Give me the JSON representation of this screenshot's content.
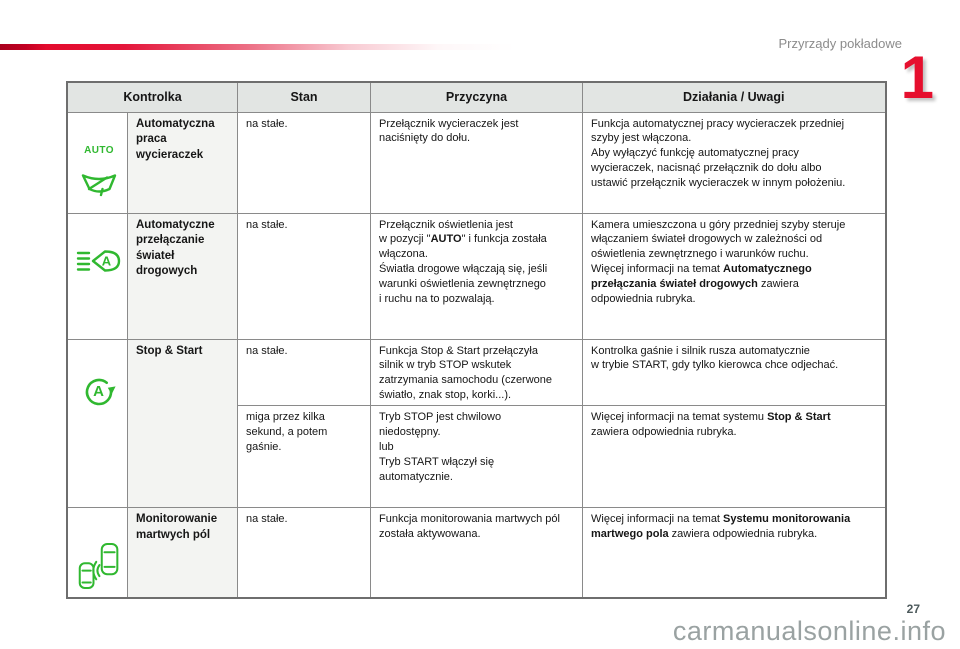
{
  "page": {
    "section_title": "Przyrządy pokładowe",
    "chapter_number": "1",
    "page_number": "27",
    "watermark": "carmanualsonline.info"
  },
  "colors": {
    "accent_red": "#e30b2d",
    "indicator_green": "#30b830",
    "header_bg": "#e2e5e3"
  },
  "table": {
    "headers": [
      "Kontrolka",
      "Stan",
      "Przyczyna",
      "Działania / Uwagi"
    ],
    "rows": [
      {
        "icon": "auto-wipers-icon",
        "icon_label": "AUTO",
        "label": "Automatyczna\npraca\nwycieraczek",
        "state": "na stałe.",
        "cause": [
          {
            "t": "Przełącznik wycieraczek jest\nnaciśnięty do dołu."
          }
        ],
        "actions": [
          {
            "t": "Funkcja automatycznej pracy wycieraczek przedniej\nszyby jest włączona.\nAby wyłączyć funkcję automatycznej pracy\nwycieraczek, nacisnąć przełącznik do dołu albo\nustawić przełącznik wycieraczek w innym położeniu."
          }
        ]
      },
      {
        "icon": "auto-high-beam-icon",
        "icon_letter": "A",
        "label": "Automatyczne\nprzełączanie\nświateł\ndrogowych",
        "state": "na stałe.",
        "cause": [
          {
            "t": "Przełącznik oświetlenia jest\nw pozycji \""
          },
          {
            "t": "AUTO",
            "b": true
          },
          {
            "t": "\" i funkcja została\nwłączona.\nŚwiatła drogowe włączają się, jeśli\nwarunki oświetlenia zewnętrznego\ni ruchu na to pozwalają."
          }
        ],
        "actions": [
          {
            "t": "Kamera umieszczona u góry przedniej szyby steruje\nwłączaniem świateł drogowych w zależności od\noświetlenia zewnętrznego i warunków ruchu.\nWięcej informacji na temat "
          },
          {
            "t": "Automatycznego\nprzełączania świateł drogowych",
            "b": true
          },
          {
            "t": " zawiera\nodpowiednia rubryka."
          }
        ]
      },
      {
        "icon": "stop-start-icon",
        "icon_letter": "A",
        "label": "Stop & Start",
        "sub": [
          {
            "state": "na stałe.",
            "cause": [
              {
                "t": "Funkcja Stop & Start przełączyła\nsilnik w tryb STOP wskutek\nzatrzymania samochodu (czerwone\nświatło, znak stop, korki...)."
              }
            ],
            "actions": [
              {
                "t": "Kontrolka gaśnie i silnik rusza automatycznie\nw trybie START, gdy tylko kierowca chce odjechać."
              }
            ]
          },
          {
            "state": "miga przez kilka\nsekund, a potem\ngaśnie.",
            "cause": [
              {
                "t": "Tryb STOP jest chwilowo\nniedostępny.\nlub\nTryb START włączył się\nautomatycznie."
              }
            ],
            "actions": [
              {
                "t": "Więcej informacji na temat systemu "
              },
              {
                "t": "Stop & Start",
                "b": true
              },
              {
                "t": "\nzawiera odpowiednia rubryka."
              }
            ]
          }
        ]
      },
      {
        "icon": "blind-spot-monitoring-icon",
        "label": "Monitorowanie\nmartwych pól",
        "state": "na stałe.",
        "cause": [
          {
            "t": "Funkcja monitorowania martwych pól\nzostała aktywowana."
          }
        ],
        "actions": [
          {
            "t": "Więcej informacji na temat "
          },
          {
            "t": "Systemu monitorowania\nmartwego pola",
            "b": true
          },
          {
            "t": " zawiera odpowiednia rubryka."
          }
        ]
      }
    ]
  }
}
